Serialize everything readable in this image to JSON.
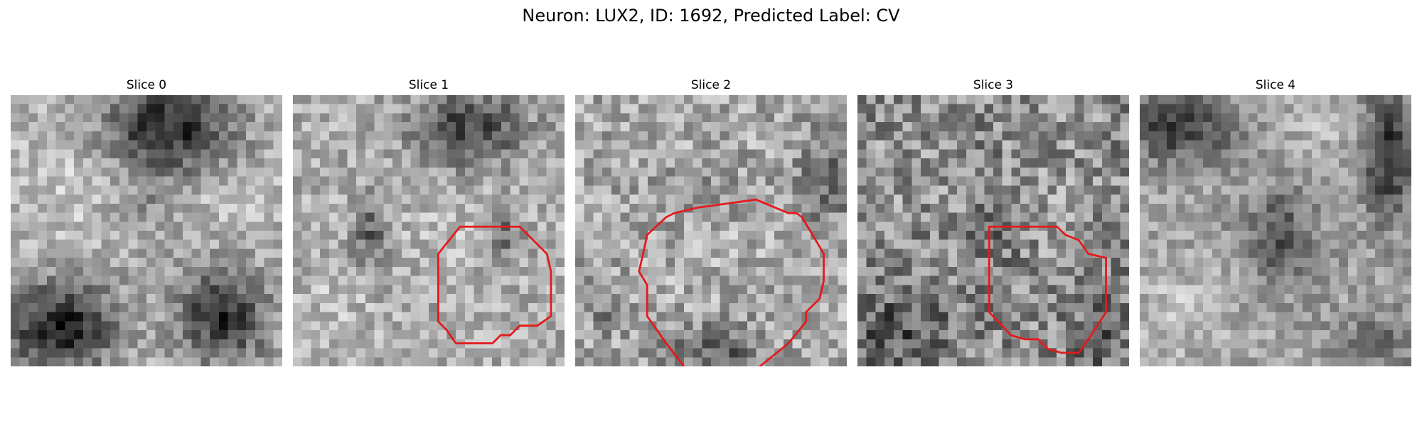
{
  "figure": {
    "title": "Neuron: LUX2, ID: 1692, Predicted Label: CV",
    "contour_color": "#e41a1c"
  },
  "slices": [
    {
      "label": "Slice 0",
      "has_contour": false
    },
    {
      "label": "Slice 1",
      "has_contour": true
    },
    {
      "label": "Slice 2",
      "has_contour": true
    },
    {
      "label": "Slice 3",
      "has_contour": true
    },
    {
      "label": "Slice 4",
      "has_contour": false
    }
  ]
}
